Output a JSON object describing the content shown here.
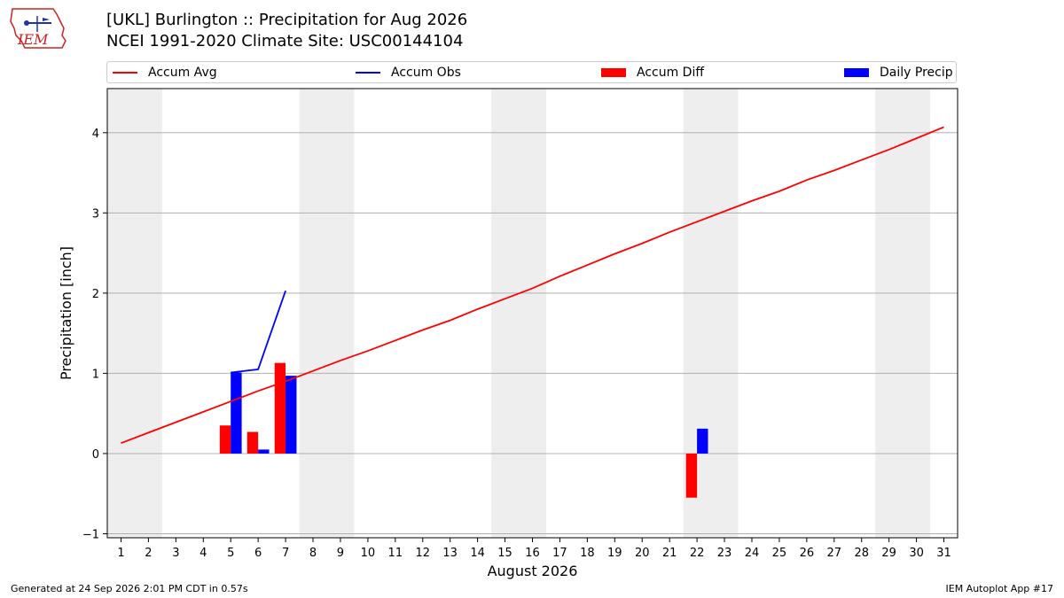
{
  "logo": {
    "text": "IEM",
    "color": "#cc2222"
  },
  "header": {
    "title": "[UKL] Burlington :: Precipitation for Aug 2026",
    "subtitle": "NCEI 1991-2020 Climate Site: USC00144104"
  },
  "legend": {
    "items": [
      {
        "label": "Accum Avg",
        "kind": "line",
        "color": "#ff0000"
      },
      {
        "label": "Accum Obs",
        "kind": "line",
        "color": "#0000ff"
      },
      {
        "label": "Accum Diff",
        "kind": "patch",
        "color": "#ff0000"
      },
      {
        "label": "Daily Precip",
        "kind": "patch",
        "color": "#0000ff"
      }
    ]
  },
  "chart_data": {
    "type": "bar",
    "xlabel": "August 2026",
    "ylabel": "Precipitation [inch]",
    "xlim": [
      0.5,
      31.5
    ],
    "ylim": [
      -1.05,
      4.55
    ],
    "yticks": [
      -1,
      0,
      1,
      2,
      3,
      4
    ],
    "xticks": [
      1,
      2,
      3,
      4,
      5,
      6,
      7,
      8,
      9,
      10,
      11,
      12,
      13,
      14,
      15,
      16,
      17,
      18,
      19,
      20,
      21,
      22,
      23,
      24,
      25,
      26,
      27,
      28,
      29,
      30,
      31
    ],
    "grid": "horizontal",
    "weekend_bands": [
      [
        0.5,
        2.5
      ],
      [
        7.5,
        9.5
      ],
      [
        14.5,
        16.5
      ],
      [
        21.5,
        23.5
      ],
      [
        28.5,
        30.5
      ]
    ],
    "band_color": "#eeeeee",
    "series": [
      {
        "name": "Accum Avg",
        "kind": "line",
        "color": "#ff0000",
        "x": [
          1,
          2,
          3,
          4,
          5,
          6,
          7,
          8,
          9,
          10,
          11,
          12,
          13,
          14,
          15,
          16,
          17,
          18,
          19,
          20,
          21,
          22,
          23,
          24,
          25,
          26,
          27,
          28,
          29,
          30,
          31
        ],
        "values": [
          0.13,
          0.26,
          0.39,
          0.52,
          0.65,
          0.78,
          0.9,
          1.03,
          1.16,
          1.28,
          1.41,
          1.54,
          1.66,
          1.8,
          1.93,
          2.06,
          2.21,
          2.35,
          2.49,
          2.62,
          2.76,
          2.89,
          3.02,
          3.15,
          3.27,
          3.41,
          3.53,
          3.66,
          3.79,
          3.93,
          4.07
        ]
      },
      {
        "name": "Accum Obs",
        "kind": "line",
        "color": "#0000ff",
        "x": [
          5,
          6,
          7
        ],
        "values": [
          1.01,
          1.05,
          2.03
        ]
      },
      {
        "name": "Accum Diff",
        "kind": "bar",
        "color": "#ff0000",
        "offset": -0.2,
        "x": [
          5,
          6,
          7,
          22
        ],
        "values": [
          0.35,
          0.27,
          1.13,
          -0.55
        ]
      },
      {
        "name": "Daily Precip",
        "kind": "bar",
        "color": "#0000ff",
        "offset": 0.2,
        "x": [
          5,
          6,
          7,
          22
        ],
        "values": [
          1.01,
          0.05,
          0.97,
          0.31
        ]
      }
    ]
  },
  "footer": {
    "generated": "Generated at 24 Sep 2026 2:01 PM CDT in 0.57s",
    "app": "IEM Autoplot App #17"
  }
}
